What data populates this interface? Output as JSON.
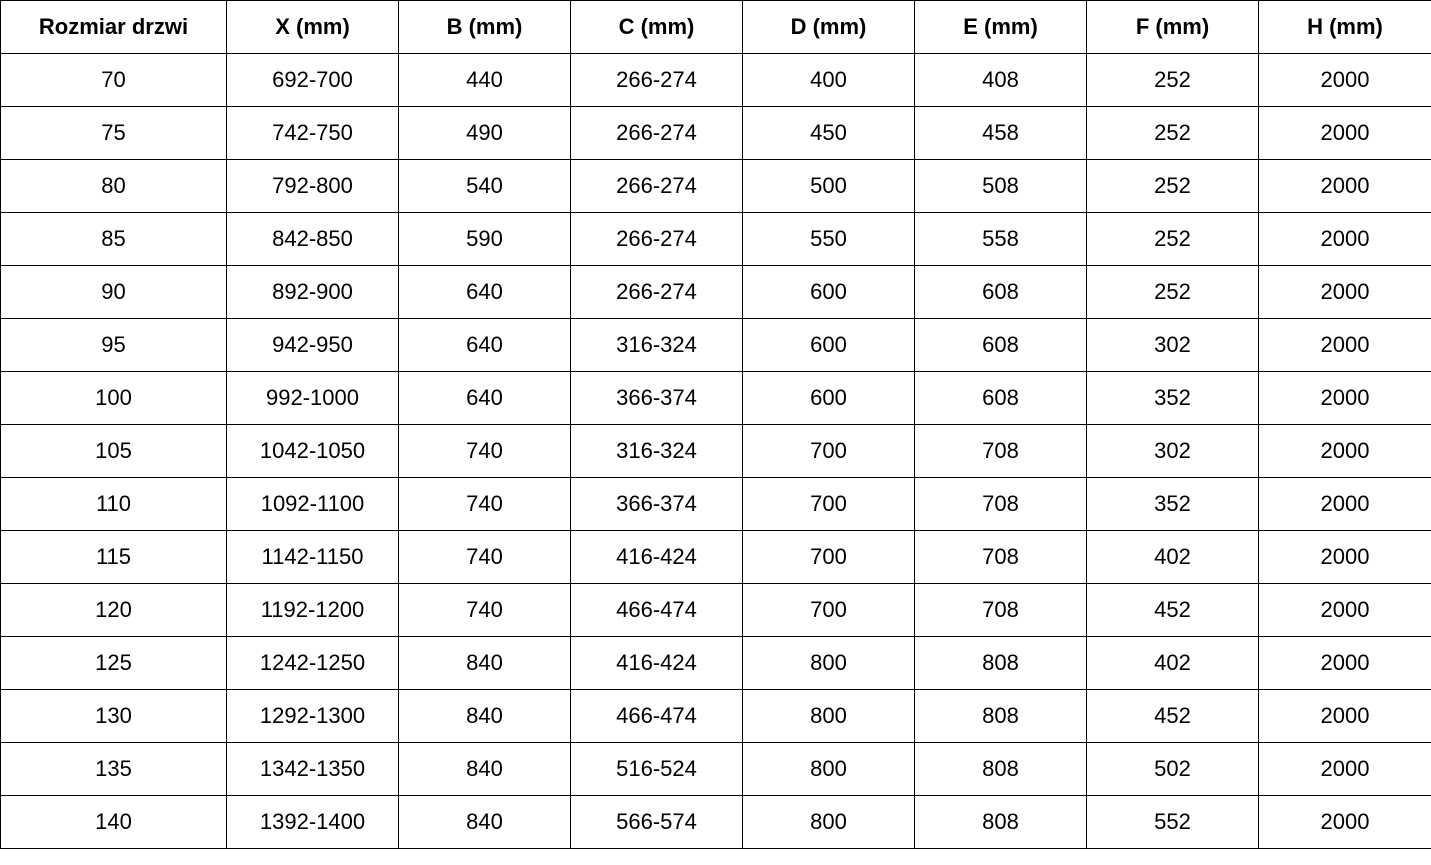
{
  "table": {
    "headers": [
      "Rozmiar drzwi",
      "X (mm)",
      "B (mm)",
      "C (mm)",
      "D (mm)",
      "E (mm)",
      "F (mm)",
      "H (mm)"
    ],
    "rows": [
      [
        "70",
        "692-700",
        "440",
        "266-274",
        "400",
        "408",
        "252",
        "2000"
      ],
      [
        "75",
        "742-750",
        "490",
        "266-274",
        "450",
        "458",
        "252",
        "2000"
      ],
      [
        "80",
        "792-800",
        "540",
        "266-274",
        "500",
        "508",
        "252",
        "2000"
      ],
      [
        "85",
        "842-850",
        "590",
        "266-274",
        "550",
        "558",
        "252",
        "2000"
      ],
      [
        "90",
        "892-900",
        "640",
        "266-274",
        "600",
        "608",
        "252",
        "2000"
      ],
      [
        "95",
        "942-950",
        "640",
        "316-324",
        "600",
        "608",
        "302",
        "2000"
      ],
      [
        "100",
        "992-1000",
        "640",
        "366-374",
        "600",
        "608",
        "352",
        "2000"
      ],
      [
        "105",
        "1042-1050",
        "740",
        "316-324",
        "700",
        "708",
        "302",
        "2000"
      ],
      [
        "110",
        "1092-1100",
        "740",
        "366-374",
        "700",
        "708",
        "352",
        "2000"
      ],
      [
        "115",
        "1142-1150",
        "740",
        "416-424",
        "700",
        "708",
        "402",
        "2000"
      ],
      [
        "120",
        "1192-1200",
        "740",
        "466-474",
        "700",
        "708",
        "452",
        "2000"
      ],
      [
        "125",
        "1242-1250",
        "840",
        "416-424",
        "800",
        "808",
        "402",
        "2000"
      ],
      [
        "130",
        "1292-1300",
        "840",
        "466-474",
        "800",
        "808",
        "452",
        "2000"
      ],
      [
        "135",
        "1342-1350",
        "840",
        "516-524",
        "800",
        "808",
        "502",
        "2000"
      ],
      [
        "140",
        "1392-1400",
        "840",
        "566-574",
        "800",
        "808",
        "552",
        "2000"
      ]
    ]
  }
}
